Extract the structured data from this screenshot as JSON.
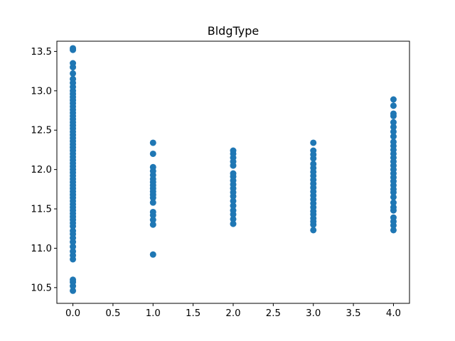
{
  "chart_data": {
    "type": "scatter",
    "title": "BldgType",
    "xlabel": "",
    "ylabel": "",
    "xlim": [
      -0.2,
      4.2
    ],
    "ylim": [
      10.3,
      13.63
    ],
    "x_ticks": [
      0.0,
      0.5,
      1.0,
      1.5,
      2.0,
      2.5,
      3.0,
      3.5,
      4.0
    ],
    "x_tick_labels": [
      "0.0",
      "0.5",
      "1.0",
      "1.5",
      "2.0",
      "2.5",
      "3.0",
      "3.5",
      "4.0"
    ],
    "y_ticks": [
      10.5,
      11.0,
      11.5,
      12.0,
      12.5,
      13.0,
      13.5
    ],
    "y_tick_labels": [
      "10.5",
      "11.0",
      "11.5",
      "12.0",
      "12.5",
      "13.0",
      "13.5"
    ],
    "grid": false,
    "legend": "none",
    "marker_color": "#1f77b4",
    "series": [
      {
        "x": 0,
        "values": [
          10.46,
          10.52,
          10.57,
          10.6,
          10.86,
          10.91,
          10.96,
          11.02,
          11.08,
          11.13,
          11.18,
          11.22,
          11.28,
          11.32,
          11.36,
          11.4,
          11.44,
          11.48,
          11.52,
          11.56,
          11.6,
          11.64,
          11.68,
          11.72,
          11.76,
          11.8,
          11.84,
          11.88,
          11.92,
          11.96,
          12.0,
          12.04,
          12.08,
          12.12,
          12.16,
          12.2,
          12.24,
          12.28,
          12.32,
          12.36,
          12.4,
          12.44,
          12.48,
          12.52,
          12.56,
          12.6,
          12.64,
          12.68,
          12.72,
          12.76,
          12.8,
          12.84,
          12.88,
          12.92,
          12.96,
          13.0,
          13.05,
          13.1,
          13.15,
          13.22,
          13.3,
          13.35,
          13.52,
          13.54
        ]
      },
      {
        "x": 1,
        "values": [
          10.92,
          11.3,
          11.36,
          11.42,
          11.46,
          11.58,
          11.64,
          11.68,
          11.72,
          11.76,
          11.8,
          11.84,
          11.88,
          11.93,
          11.98,
          12.03,
          12.2,
          12.34
        ]
      },
      {
        "x": 2,
        "values": [
          11.31,
          11.37,
          11.43,
          11.48,
          11.54,
          11.6,
          11.66,
          11.71,
          11.76,
          11.81,
          11.86,
          11.91,
          11.95,
          12.05,
          12.1,
          12.15,
          12.2,
          12.24
        ]
      },
      {
        "x": 3,
        "values": [
          11.23,
          11.3,
          11.34,
          11.38,
          11.43,
          11.47,
          11.52,
          11.57,
          11.62,
          11.67,
          11.72,
          11.77,
          11.82,
          11.87,
          11.92,
          11.97,
          12.02,
          12.07,
          12.14,
          12.19,
          12.24,
          12.34
        ]
      },
      {
        "x": 4,
        "values": [
          11.23,
          11.29,
          11.34,
          11.39,
          11.48,
          11.52,
          11.58,
          11.65,
          11.71,
          11.75,
          11.8,
          11.85,
          11.9,
          11.95,
          12.0,
          12.05,
          12.1,
          12.15,
          12.2,
          12.25,
          12.3,
          12.35,
          12.42,
          12.48,
          12.54,
          12.6,
          12.68,
          12.71,
          12.81,
          12.89
        ]
      }
    ]
  }
}
